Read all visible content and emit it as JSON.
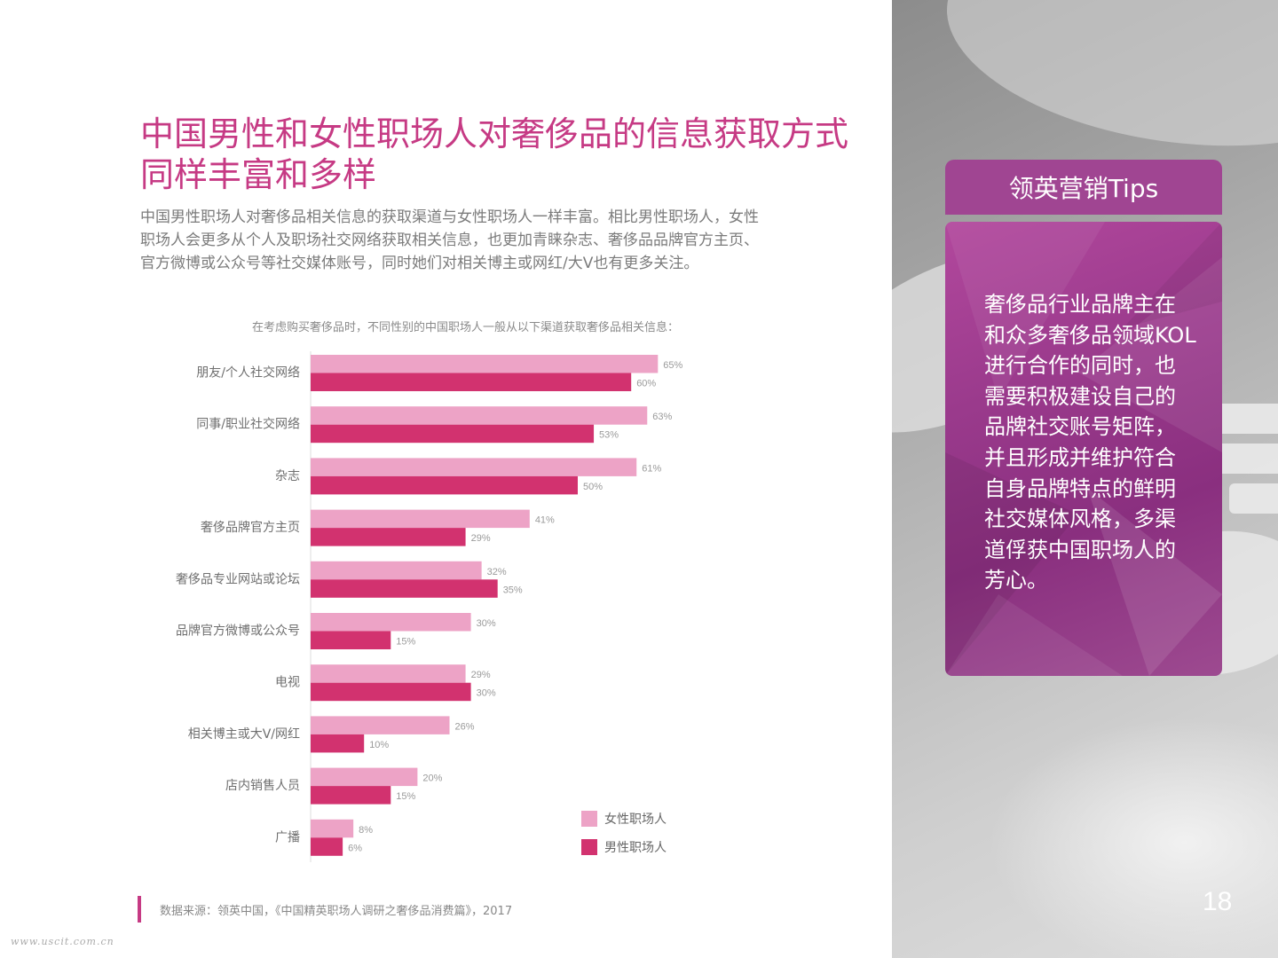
{
  "title_lines": [
    "中国男性和女性职场人对奢侈品的信息获取方式",
    "同样丰富和多样"
  ],
  "intro_lines": [
    "中国男性职场人对奢侈品相关信息的获取渠道与女性职场人一样丰富。相比男性职场人，女性",
    "职场人会更多从个人及职场社交网络获取相关信息，也更加青睐杂志、奢侈品品牌官方主页、",
    "官方微博或公众号等社交媒体账号，同时她们对相关博主或网红/大V也有更多关注。"
  ],
  "chart_data": {
    "type": "bar",
    "orientation": "horizontal",
    "subtitle": "在考虑购买奢侈品时，不同性别的中国职场人一般从以下渠道获取奢侈品相关信息：",
    "categories": [
      "朋友/个人社交网络",
      "同事/职业社交网络",
      "杂志",
      "奢侈品牌官方主页",
      "奢侈品专业网站或论坛",
      "品牌官方微博或公众号",
      "电视",
      "相关博主或大V/网红",
      "店内销售人员",
      "广播"
    ],
    "series": [
      {
        "name": "女性职场人",
        "color": "#eda3c6",
        "values": [
          65,
          63,
          61,
          41,
          32,
          30,
          29,
          26,
          20,
          8
        ]
      },
      {
        "name": "男性职场人",
        "color": "#d2326f",
        "values": [
          60,
          53,
          50,
          29,
          35,
          15,
          30,
          10,
          15,
          6
        ]
      }
    ],
    "value_suffix": "%",
    "xlim": [
      0,
      100
    ],
    "grid": false,
    "legend_position": "bottom-right"
  },
  "legend": {
    "female": "女性职场人",
    "male": "男性职场人"
  },
  "source": "数据来源：领英中国，《中国精英职场人调研之奢侈品消费篇》，2017",
  "watermark": "www.uscit.com.cn",
  "tips": {
    "header": "领英营销Tips",
    "lines": [
      "奢侈品行业品牌主在",
      "和众多奢侈品领域KOL",
      "进行合作的同时，也",
      "需要积极建设自己的",
      "品牌社交账号矩阵，",
      "并且形成并维护符合",
      "自身品牌特点的鲜明",
      "社交媒体风格，多渠",
      "道俘获中国职场人的",
      "芳心。"
    ]
  },
  "page_number": "18",
  "colors": {
    "accent": "#c63a84",
    "female_bar": "#eda3c6",
    "male_bar": "#d2326f",
    "tips_bg": "#a04592"
  }
}
